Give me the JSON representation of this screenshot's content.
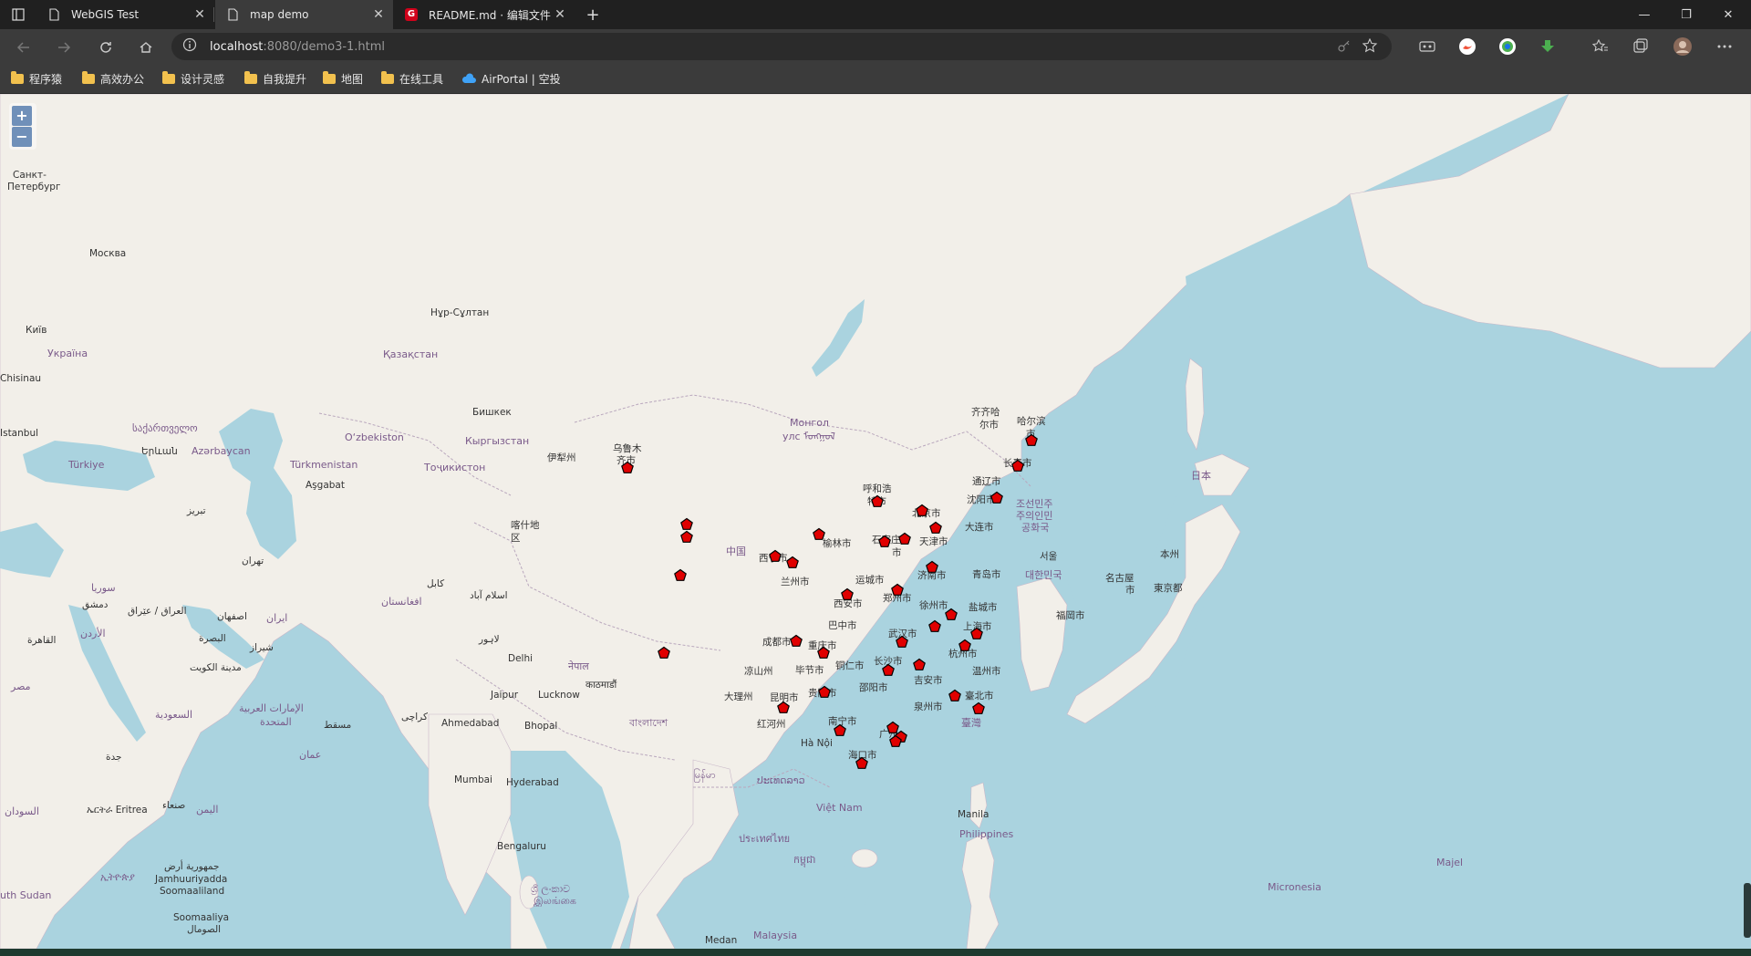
{
  "tabs": [
    {
      "title": "WebGIS Test",
      "active": false
    },
    {
      "title": "map demo",
      "active": true
    },
    {
      "title": "README.md · 编辑文件 · DXnimo",
      "active": false
    }
  ],
  "new_tab_glyph": "+",
  "window_controls": {
    "minimize": "—",
    "maximize": "❐",
    "close": "✕"
  },
  "address": {
    "host": "localhost",
    "rest": ":8080/demo3-1.html"
  },
  "bookmarks": [
    "程序猿",
    "高效办公",
    "设计灵感",
    "自我提升",
    "地图",
    "在线工具",
    "AirPortal | 空投"
  ],
  "map": {
    "zoom_in": "+",
    "zoom_out": "−",
    "labels": {
      "spb": "Санкт-",
      "spb2": "Петербург",
      "moscow": "Москва",
      "kyiv": "Київ",
      "ukraine": "Україна",
      "kishinau": "Chisinau",
      "istanbul": "Istanbul",
      "georgia": "საქართველო",
      "yerevan": "Երևան",
      "azerbaijan": "Azərbaycan",
      "turkiye": "Türkiye",
      "turkmenistan": "Türkmenistan",
      "ashgabat": "Aşgabat",
      "uzbekistan": "O‘zbekiston",
      "kazakhstan": "Қазақстан",
      "nursultan": "Нұр-Сұлтан",
      "bishkek": "Бишкек",
      "kyrgyzstan": "Кыргызстан",
      "tojikiston": "Тоҷикистон",
      "kashgar": "喀什地",
      "kashgar2": "区",
      "yili": "伊犁州",
      "urumqi": "乌鲁木",
      "urumqi2": "齐市",
      "tehran": "تهران",
      "iraq": "العراق / عێراق",
      "afghanistan": "افغانستان",
      "kabul": "کابل",
      "islamabad": "اسلام آباد",
      "lahore": "لاہور",
      "delhi": "Delhi",
      "jaipur": "Jaipur",
      "lucknow": "Lucknow",
      "nepal": "नेपाल",
      "kathmandu": "काठमाडौं",
      "ahmedabad": "Ahmedabad",
      "bhopal": "Bhopal",
      "karachi": "کراچی",
      "mumbai": "Mumbai",
      "hyderabad": "Hyderabad",
      "bengaluru": "Bengaluru",
      "srilanka": "ශ්‍රී ලංකාව",
      "srilanka2": "இலங்கை",
      "bangladesh": "বাংলাদেশ",
      "myanmar": "မြန်မာ",
      "thailand": "ประเทศไทย",
      "vietnam": "Việt Nam",
      "hanoi": "Hà Nội",
      "laos": "ປະເທດລາວ",
      "cambodia": "កម្ពុជា",
      "malaysia": "Malaysia",
      "medan": "Medan",
      "manila": "Manila",
      "philippines": "Philippines",
      "micronesia": "Micronesia",
      "majel": "Majel",
      "mongolia": "Монгол",
      "mongolia2": "улс ᠮᠣᠩᠭᠣᠯ",
      "china": "中国",
      "japan": "日本",
      "korea_n": "조선민주",
      "korea_n2": "주의인민",
      "korea_n3": "공화국",
      "korea_s": "대한민국",
      "seoul": "서울",
      "fukuoka": "福岡市",
      "tokyo": "東京都",
      "nagoya": "名古屋",
      "nagoya2": "市",
      "honshu": "本州",
      "saudi": "السعودية",
      "kuwait": "مدينة الكويت",
      "uae": "الإمارات العربية",
      "uae2": "المتحدة",
      "muscat": "مسقط",
      "oman": "عمان",
      "yemen": "اليمن",
      "eritrea": "ኤርትራ Eritrea",
      "sudan": "السودان",
      "somalia": "Jamhuuriyadda",
      "somalia2": "Soomaaliland",
      "southsudan": "uth Sudan",
      "somalia3": "Soomaaliya",
      "somalia4": "الصومال",
      "ethiopia": "ኢትዮጵያ",
      "egypt": "مصر",
      "cairo": "القاهرة",
      "jordan": "الأردن",
      "damascus": "دمشق",
      "syria": "سوريا",
      "basra": "البصرة",
      "shiraz": "شيراز",
      "isfahan": "اصفهان",
      "iran": "ایران",
      "tabriz": "تبریز",
      "jeddah": "جدة",
      "sanaa": "صنعاء",
      "somalia5": "الصومال",
      "somalia6": "جمهورية أرض",
      "harbin": "哈尔滨",
      "harbin2": "市",
      "qiqihar": "齐齐哈",
      "qiqihar2": "尔市",
      "changchun": "长春市",
      "tonghua": "通辽市",
      "shenyang": "沈阳市",
      "dalian": "大连市",
      "hohhot": "呼和浩",
      "hohhot2": "特市",
      "beijing": "北京市",
      "tianjin": "天津市",
      "shijiazhuang": "石家庄",
      "shijiazhuang2": "市",
      "yulin": "榆林市",
      "xining": "西宁市",
      "lanzhou": "兰州市",
      "yuncheng": "运城市",
      "jinan": "济南市",
      "qingdao": "青岛市",
      "zhengzhou": "郑州市",
      "xian": "西安市",
      "xuzhou": "徐州市",
      "yancheng": "盐城市",
      "shanghai": "上海市",
      "bazhong": "巴中市",
      "chengdu": "成都市",
      "chongqing": "重庆市",
      "wuhan": "武汉市",
      "hangzhou": "杭州市",
      "liangshan": "凉山州",
      "bijie": "毕节市",
      "tongren": "铜仁市",
      "changsha": "长沙市",
      "wenzhou": "温州市",
      "dali": "大理州",
      "kunming": "昆明市",
      "guiyang": "贵阳市",
      "shaoyang": "邵阳市",
      "jian": "吉安市",
      "taipei": "臺北市",
      "quanzhou": "泉州市",
      "taiwan": "臺灣",
      "honghe": "红河州",
      "nanning": "南宁市",
      "guangzhou": "广州",
      "haikou": "海口市"
    },
    "marker_color": "#e00000"
  }
}
